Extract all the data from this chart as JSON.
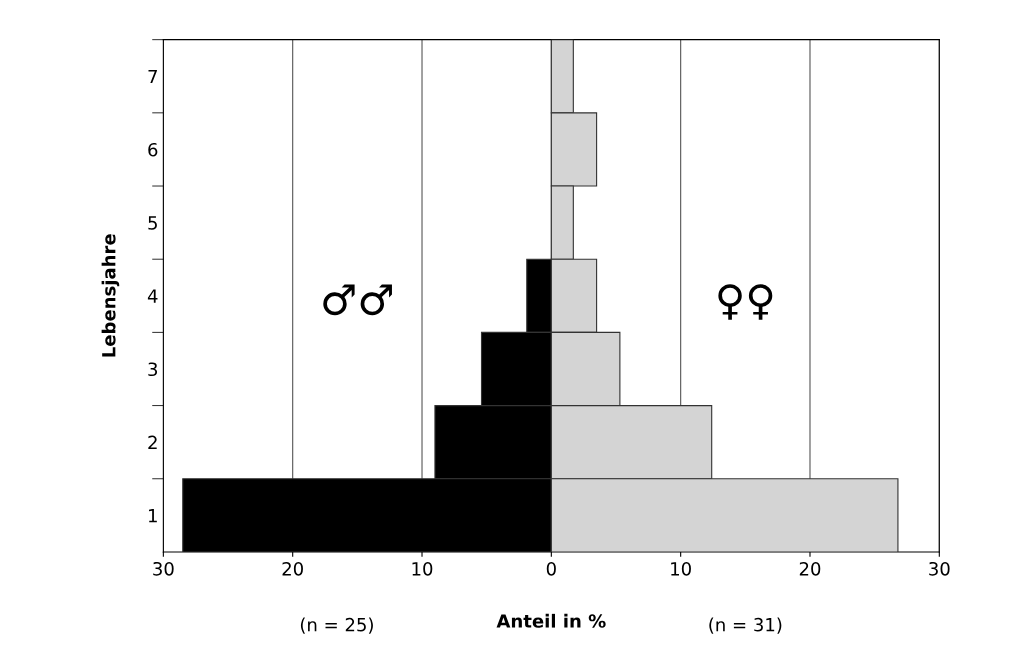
{
  "chart_data": {
    "type": "bar",
    "orientation": "horizontal",
    "xlabel": "Anteil in %",
    "ylabel": "Lebensjahre",
    "categories": [
      "7",
      "6",
      "5",
      "4",
      "3",
      "2",
      "1"
    ],
    "series": [
      {
        "name": "♂♂",
        "color": "#000000",
        "values": [
          0,
          0,
          0,
          -1.9,
          -5.4,
          -9,
          -28.5
        ]
      },
      {
        "name": "♀♀",
        "color": "#d4d4d4",
        "values": [
          1.7,
          3.5,
          1.7,
          3.5,
          5.3,
          12.4,
          26.8
        ]
      }
    ],
    "stacked": true,
    "xlim": [
      -30,
      30
    ],
    "xticks": [
      {
        "value": -30,
        "label": "30"
      },
      {
        "value": -20,
        "label": "20"
      },
      {
        "value": -10,
        "label": "10"
      },
      0,
      10,
      20,
      30
    ],
    "grid": "x",
    "annotations": [
      "(n = 25)",
      "(n = 31)"
    ]
  }
}
